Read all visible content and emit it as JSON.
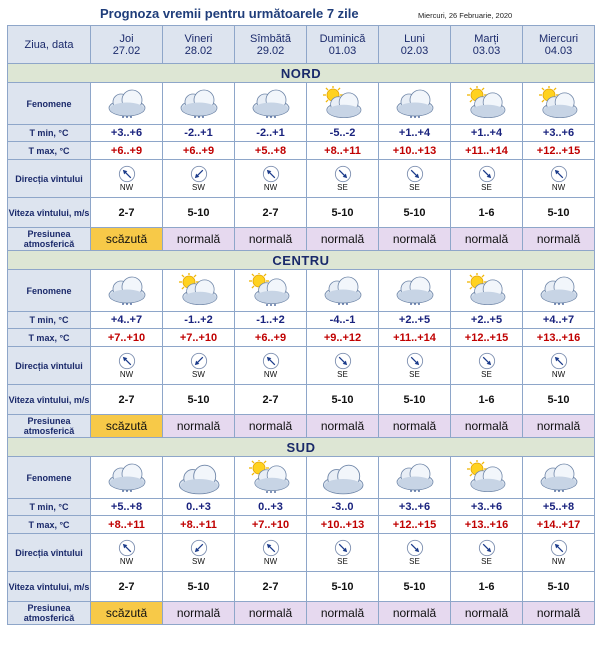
{
  "header": {
    "title": "Prognoza vremii pentru următoarele 7 zile",
    "date": "Miercuri, 26 Februarie, 2020"
  },
  "row_labels": {
    "day_date": "Ziua, data",
    "phenomena": "Fenomene",
    "tmin": "T min, °C",
    "tmax": "T max, °C",
    "wind_dir": "Direcția vîntului",
    "wind_speed": "Viteza vîntului, m/s",
    "pressure": "Presiunea atmosferică"
  },
  "days": [
    {
      "name": "Joi",
      "date": "27.02"
    },
    {
      "name": "Vineri",
      "date": "28.02"
    },
    {
      "name": "Sîmbătă",
      "date": "29.02"
    },
    {
      "name": "Duminică",
      "date": "01.03"
    },
    {
      "name": "Luni",
      "date": "02.03"
    },
    {
      "name": "Marți",
      "date": "03.03"
    },
    {
      "name": "Miercuri",
      "date": "04.03"
    }
  ],
  "regions": [
    {
      "name": "NORD",
      "icons": [
        "cloud-snow-icon",
        "cloud-snow-icon",
        "cloud-snow-icon",
        "sun-cloud-icon",
        "cloud-snow-icon",
        "sun-cloud-icon",
        "sun-cloud-icon"
      ],
      "tmin": [
        "+3..+6",
        "-2..+1",
        "-2..+1",
        "-5..-2",
        "+1..+4",
        "+1..+4",
        "+3..+6"
      ],
      "tmax": [
        "+6..+9",
        "+6..+9",
        "+5..+8",
        "+8..+11",
        "+10..+13",
        "+11..+14",
        "+12..+15"
      ],
      "wind_dir": [
        "NW",
        "SW",
        "NW",
        "SE",
        "SE",
        "SE",
        "NW"
      ],
      "wind_speed": [
        "2-7",
        "5-10",
        "2-7",
        "5-10",
        "5-10",
        "1-6",
        "5-10"
      ],
      "pressure": [
        "scăzută",
        "normală",
        "normală",
        "normală",
        "normală",
        "normală",
        "normală"
      ]
    },
    {
      "name": "CENTRU",
      "icons": [
        "cloud-snow-icon",
        "sun-cloud-icon",
        "sun-cloud-snow-icon",
        "cloud-snow-icon",
        "cloud-snow-icon",
        "sun-cloud-icon",
        "cloud-snow-icon"
      ],
      "tmin": [
        "+4..+7",
        "-1..+2",
        "-1..+2",
        "-4..-1",
        "+2..+5",
        "+2..+5",
        "+4..+7"
      ],
      "tmax": [
        "+7..+10",
        "+7..+10",
        "+6..+9",
        "+9..+12",
        "+11..+14",
        "+12..+15",
        "+13..+16"
      ],
      "wind_dir": [
        "NW",
        "SW",
        "NW",
        "SE",
        "SE",
        "SE",
        "NW"
      ],
      "wind_speed": [
        "2-7",
        "5-10",
        "2-7",
        "5-10",
        "5-10",
        "1-6",
        "5-10"
      ],
      "pressure": [
        "scăzută",
        "normală",
        "normală",
        "normală",
        "normală",
        "normală",
        "normală"
      ]
    },
    {
      "name": "SUD",
      "icons": [
        "cloud-snow-icon",
        "cloud-icon",
        "sun-cloud-snow-icon",
        "cloud-icon",
        "cloud-snow-icon",
        "sun-cloud-icon",
        "cloud-snow-icon"
      ],
      "tmin": [
        "+5..+8",
        "0..+3",
        "0..+3",
        "-3..0",
        "+3..+6",
        "+3..+6",
        "+5..+8"
      ],
      "tmax": [
        "+8..+11",
        "+8..+11",
        "+7..+10",
        "+10..+13",
        "+12..+15",
        "+13..+16",
        "+14..+17"
      ],
      "wind_dir": [
        "NW",
        "SW",
        "NW",
        "SE",
        "SE",
        "SE",
        "NW"
      ],
      "wind_speed": [
        "2-7",
        "5-10",
        "2-7",
        "5-10",
        "5-10",
        "1-6",
        "5-10"
      ],
      "pressure": [
        "scăzută",
        "normală",
        "normală",
        "normală",
        "normală",
        "normală",
        "normală"
      ]
    }
  ],
  "colors": {
    "header_bg": "#dde4ef",
    "region_bg": "#dde6d4",
    "pressure_low": "#f7c948",
    "pressure_normal": "#e6d9ef",
    "tmax_text": "#c00000",
    "tmin_text": "#1a237e"
  }
}
